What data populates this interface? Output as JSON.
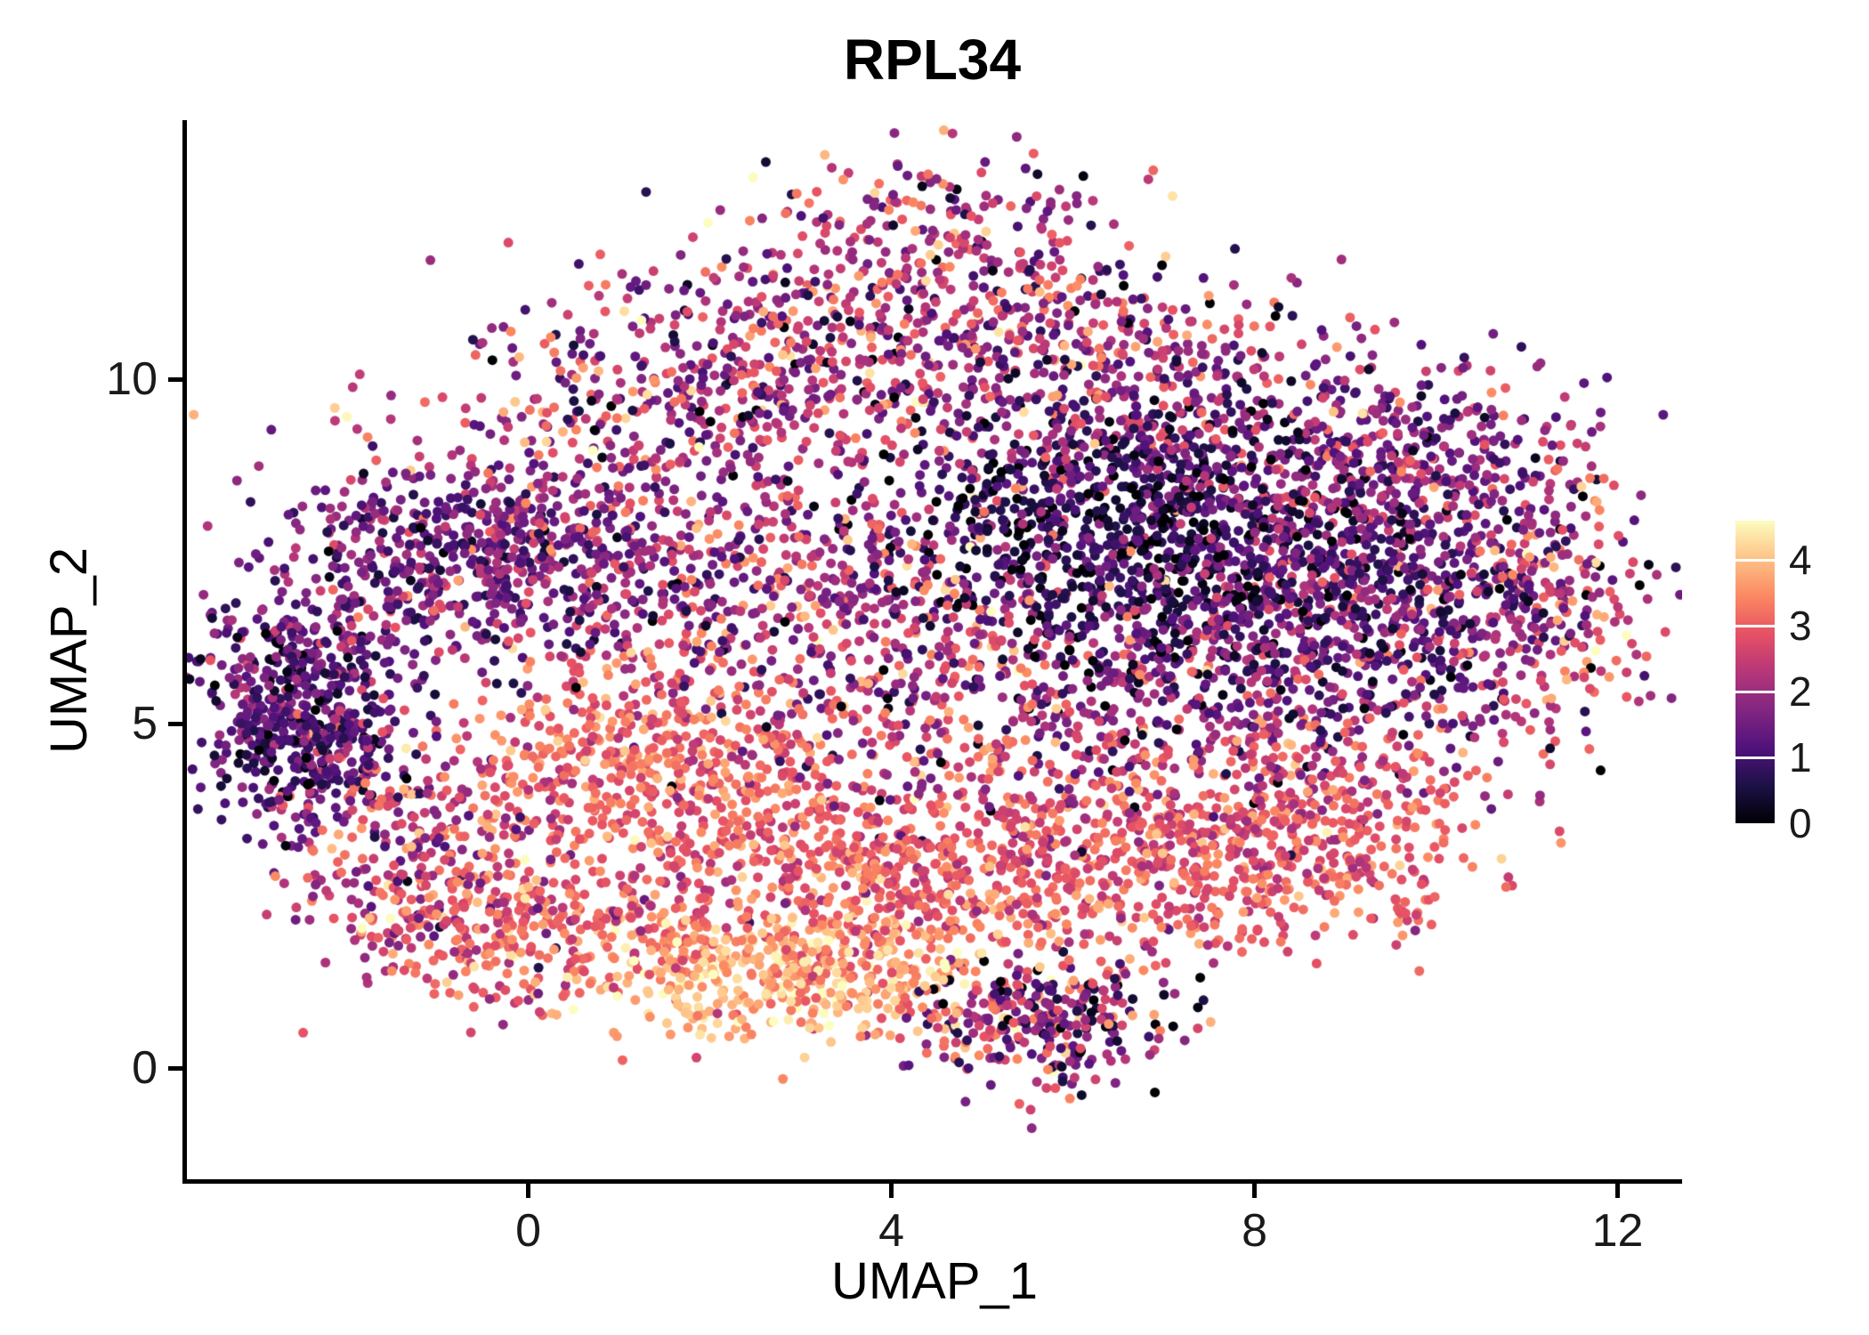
{
  "chart_data": {
    "type": "scatter",
    "title": "RPL34",
    "xlabel": "UMAP_1",
    "ylabel": "UMAP_2",
    "xlim": [
      -3.76,
      12.71
    ],
    "ylim": [
      -1.61,
      13.76
    ],
    "x_ticks": {
      "values": [
        0,
        4,
        8,
        12
      ],
      "labels": [
        "0",
        "4",
        "8",
        "12"
      ]
    },
    "y_ticks": {
      "values": [
        0,
        5,
        10
      ],
      "labels": [
        "0",
        "5",
        "10"
      ]
    },
    "grid": false,
    "legend_position": "right",
    "background_color": "#ffffff",
    "axis_color": "#000000",
    "point_radius_px": 5.5,
    "seed": 42,
    "n_points": 9314,
    "colormap": {
      "name": "magma",
      "stops": [
        "#000004",
        "#1d1147",
        "#51127c",
        "#822681",
        "#b63679",
        "#e65164",
        "#fb8861",
        "#fec287",
        "#fcfdbf"
      ]
    },
    "colorbar": {
      "vmin": 0,
      "vmax": 4.6,
      "tick_values": [
        4,
        3,
        2,
        1,
        0
      ],
      "tick_labels": [
        "4",
        "3",
        "2",
        "1",
        "0"
      ]
    },
    "clusters": [
      {
        "n": 260,
        "x": 4.4,
        "y": 11.9,
        "sx": 1.1,
        "sy": 0.65,
        "e": 2.1,
        "es": 1.0
      },
      {
        "n": 480,
        "x": 3.8,
        "y": 10.4,
        "sx": 1.9,
        "sy": 0.75,
        "e": 2.2,
        "es": 0.95
      },
      {
        "n": 320,
        "x": 1.4,
        "y": 9.2,
        "sx": 1.4,
        "sy": 0.8,
        "e": 2.2,
        "es": 0.9
      },
      {
        "n": 600,
        "x": -0.4,
        "y": 7.4,
        "sx": 1.15,
        "sy": 0.7,
        "e": 1.6,
        "es": 0.7
      },
      {
        "n": 230,
        "x": -2.2,
        "y": 6.0,
        "sx": 0.65,
        "sy": 0.8,
        "e": 1.5,
        "es": 0.8
      },
      {
        "n": 380,
        "x": -2.5,
        "y": 4.9,
        "sx": 0.55,
        "sy": 0.75,
        "e": 1.1,
        "es": 0.6
      },
      {
        "n": 300,
        "x": -1.3,
        "y": 3.1,
        "sx": 0.75,
        "sy": 0.95,
        "e": 2.5,
        "es": 0.8
      },
      {
        "n": 520,
        "x": 3.1,
        "y": 6.8,
        "sx": 1.7,
        "sy": 1.0,
        "e": 2.1,
        "es": 0.9
      },
      {
        "n": 750,
        "x": 6.4,
        "y": 7.9,
        "sx": 1.25,
        "sy": 0.95,
        "e": 0.7,
        "es": 0.6
      },
      {
        "n": 420,
        "x": 8.2,
        "y": 6.7,
        "sx": 1.3,
        "sy": 1.0,
        "e": 1.1,
        "es": 0.7
      },
      {
        "n": 720,
        "x": 9.4,
        "y": 7.0,
        "sx": 1.25,
        "sy": 1.15,
        "e": 1.6,
        "es": 0.8
      },
      {
        "n": 260,
        "x": 8.4,
        "y": 9.1,
        "sx": 1.4,
        "sy": 0.7,
        "e": 1.8,
        "es": 0.8
      },
      {
        "n": 130,
        "x": 11.3,
        "y": 6.6,
        "sx": 0.45,
        "sy": 0.85,
        "e": 2.7,
        "es": 0.9
      },
      {
        "n": 220,
        "x": 7.0,
        "y": 5.0,
        "sx": 1.4,
        "sy": 0.9,
        "e": 1.9,
        "es": 1.0
      },
      {
        "n": 470,
        "x": 1.3,
        "y": 4.4,
        "sx": 1.05,
        "sy": 0.85,
        "e": 3.1,
        "es": 0.5
      },
      {
        "n": 620,
        "x": 3.9,
        "y": 2.9,
        "sx": 1.55,
        "sy": 0.8,
        "e": 3.0,
        "es": 0.5
      },
      {
        "n": 460,
        "x": 6.9,
        "y": 3.0,
        "sx": 1.35,
        "sy": 0.7,
        "e": 2.9,
        "es": 0.55
      },
      {
        "n": 470,
        "x": 2.9,
        "y": 1.4,
        "sx": 1.15,
        "sy": 0.55,
        "e": 3.8,
        "es": 0.5
      },
      {
        "n": 160,
        "x": 0.6,
        "y": 2.2,
        "sx": 0.85,
        "sy": 0.7,
        "e": 3.0,
        "es": 0.7
      },
      {
        "n": 300,
        "x": 5.6,
        "y": 0.7,
        "sx": 0.75,
        "sy": 0.5,
        "e": 2.0,
        "es": 1.1
      },
      {
        "n": 320,
        "x": 8.9,
        "y": 3.7,
        "sx": 1.05,
        "sy": 0.75,
        "e": 2.9,
        "es": 0.5
      },
      {
        "n": 360,
        "x": 5.0,
        "y": 5.4,
        "sx": 1.9,
        "sy": 1.0,
        "e": 2.2,
        "es": 1.0
      },
      {
        "n": 260,
        "x": 6.6,
        "y": 10.0,
        "sx": 1.35,
        "sy": 0.8,
        "e": 2.0,
        "es": 0.9
      },
      {
        "n": 130,
        "x": -0.3,
        "y": 1.9,
        "sx": 0.6,
        "sy": 0.5,
        "e": 2.9,
        "es": 0.6
      },
      {
        "n": 160,
        "x": 9.9,
        "y": 8.8,
        "sx": 0.95,
        "sy": 0.6,
        "e": 1.8,
        "es": 0.8
      },
      {
        "n": 14,
        "x": 9.7,
        "y": 2.3,
        "sx": 0.15,
        "sy": 0.15,
        "e": 3.1,
        "es": 0.25
      }
    ]
  }
}
